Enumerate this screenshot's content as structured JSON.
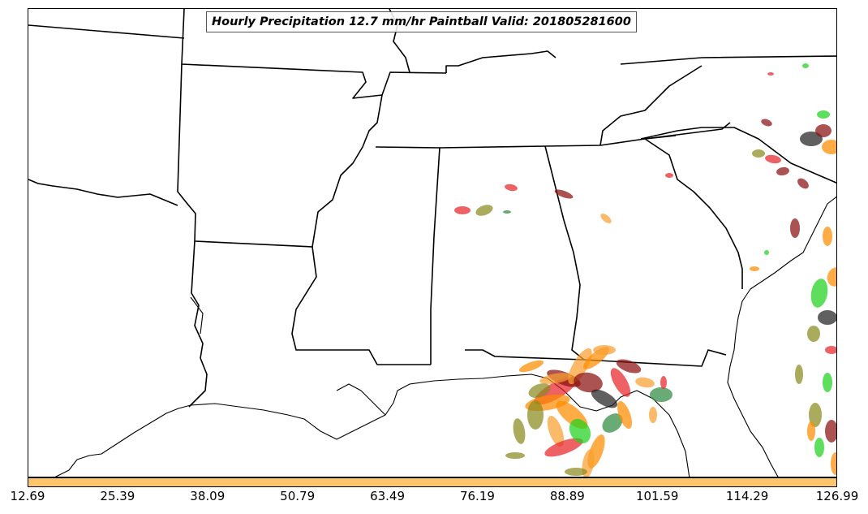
{
  "title": "Hourly Precipitation 12.7 mm/hr Paintball Valid: 201805281600",
  "colorbar": {
    "color": "#ffc56b",
    "ticks": [
      "12.69",
      "25.39",
      "38.09",
      "50.79",
      "63.49",
      "76.19",
      "88.89",
      "101.59",
      "114.29",
      "126.99"
    ]
  },
  "colors": {
    "red": "#e8242a",
    "orange": "#ff8c00",
    "light_orange": "#f8a030",
    "dark_red": "#8b1010",
    "olive": "#8b8b20",
    "green": "#1ed21e",
    "dark_green": "#2e8b3e",
    "black": "#222222",
    "border": "#000000"
  }
}
